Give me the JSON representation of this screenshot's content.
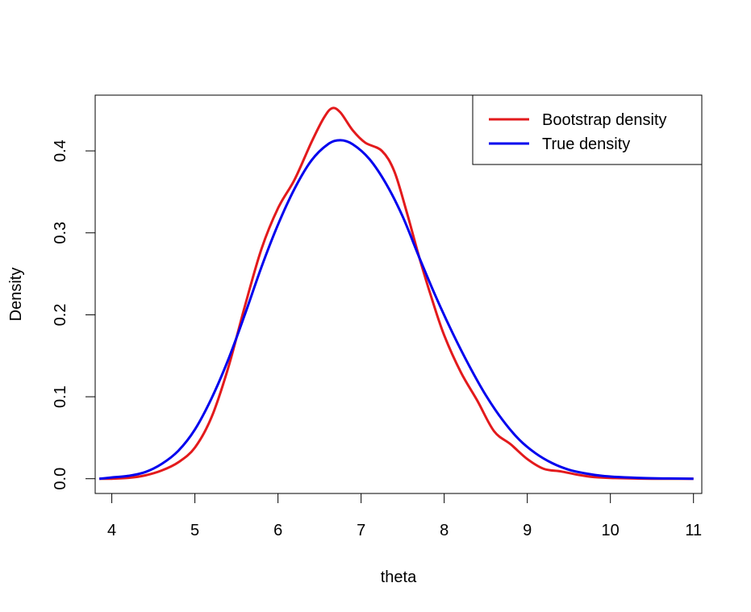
{
  "chart_data": {
    "type": "line",
    "title": "",
    "xlabel": "theta",
    "ylabel": "Density",
    "xlim": [
      3.8,
      11.1
    ],
    "ylim": [
      -0.018,
      0.468
    ],
    "xticks": [
      4,
      5,
      6,
      7,
      8,
      9,
      10,
      11
    ],
    "yticks": [
      0.0,
      0.1,
      0.2,
      0.3,
      0.4
    ],
    "xtick_labels": [
      "4",
      "5",
      "6",
      "7",
      "8",
      "9",
      "10",
      "11"
    ],
    "ytick_labels": [
      "0.0",
      "0.1",
      "0.2",
      "0.3",
      "0.4"
    ],
    "grid": false,
    "legend_position": "top-right",
    "series": [
      {
        "name": "Bootstrap density",
        "color": "#e31a1c",
        "x": [
          3.85,
          4.0,
          4.2,
          4.4,
          4.6,
          4.8,
          5.0,
          5.2,
          5.4,
          5.6,
          5.8,
          6.0,
          6.2,
          6.4,
          6.55,
          6.65,
          6.75,
          6.9,
          7.05,
          7.25,
          7.4,
          7.55,
          7.7,
          7.85,
          8.0,
          8.2,
          8.4,
          8.6,
          8.8,
          9.0,
          9.2,
          9.4,
          9.6,
          9.8,
          10.0,
          10.5,
          11.0
        ],
        "y": [
          0.0,
          0.0,
          0.001,
          0.004,
          0.01,
          0.02,
          0.038,
          0.075,
          0.135,
          0.21,
          0.28,
          0.33,
          0.365,
          0.41,
          0.44,
          0.452,
          0.447,
          0.425,
          0.41,
          0.4,
          0.375,
          0.325,
          0.27,
          0.22,
          0.175,
          0.13,
          0.095,
          0.058,
          0.042,
          0.024,
          0.012,
          0.009,
          0.005,
          0.002,
          0.001,
          0.0,
          0.0
        ]
      },
      {
        "name": "True density",
        "color": "#0000ee",
        "x": [
          3.85,
          4.0,
          4.2,
          4.4,
          4.6,
          4.8,
          5.0,
          5.2,
          5.4,
          5.6,
          5.8,
          6.0,
          6.2,
          6.4,
          6.6,
          6.75,
          6.9,
          7.1,
          7.3,
          7.5,
          7.7,
          7.9,
          8.1,
          8.3,
          8.5,
          8.7,
          8.9,
          9.1,
          9.3,
          9.5,
          9.7,
          9.9,
          10.1,
          10.4,
          10.7,
          11.0
        ],
        "y": [
          0.0,
          0.0015,
          0.0035,
          0.008,
          0.018,
          0.034,
          0.06,
          0.098,
          0.145,
          0.2,
          0.258,
          0.31,
          0.354,
          0.388,
          0.408,
          0.413,
          0.408,
          0.39,
          0.36,
          0.32,
          0.27,
          0.222,
          0.178,
          0.138,
          0.102,
          0.072,
          0.048,
          0.031,
          0.019,
          0.011,
          0.0065,
          0.0035,
          0.002,
          0.0008,
          0.0003,
          0.0
        ]
      }
    ]
  }
}
